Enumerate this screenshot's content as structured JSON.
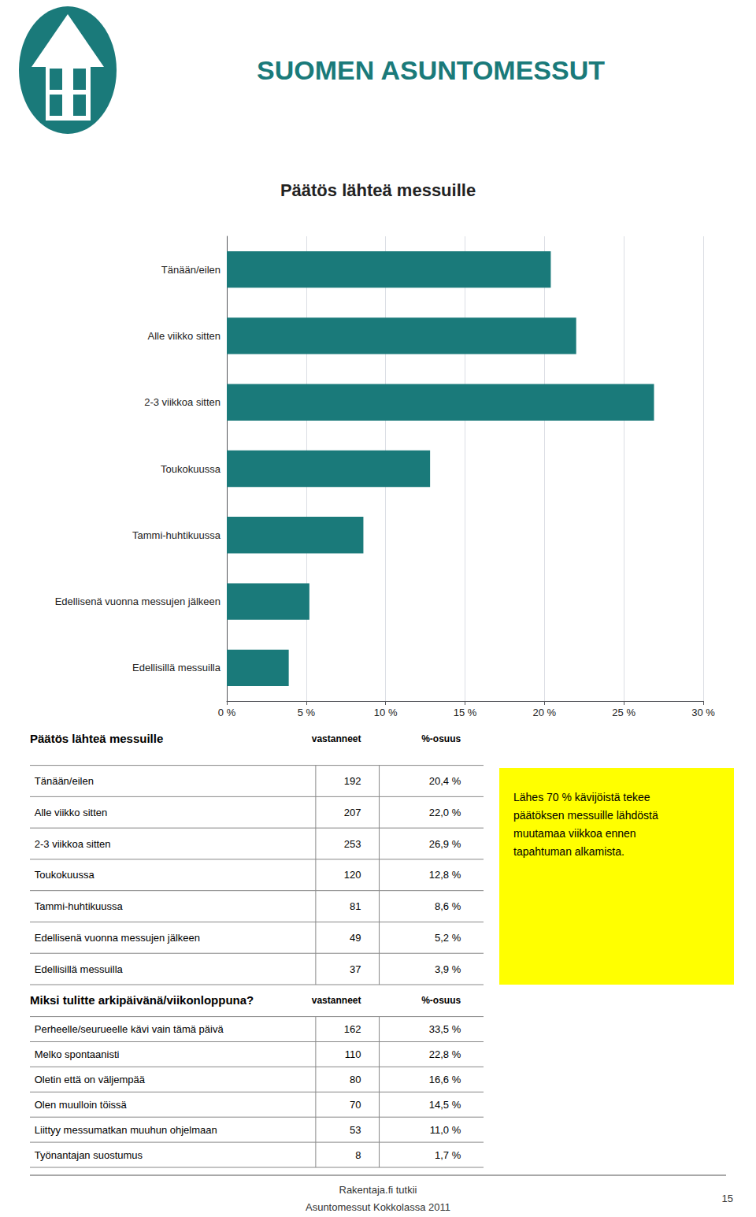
{
  "chart_data": {
    "type": "bar",
    "orientation": "horizontal",
    "title": "Päätös lähteä messuille",
    "categories": [
      "Tänään/eilen",
      "Alle viikko sitten",
      "2-3 viikkoa sitten",
      "Toukokuussa",
      "Tammi-huhtikuussa",
      "Edellisenä vuonna messujen jälkeen",
      "Edellisillä messuilla"
    ],
    "values": [
      20.4,
      22.0,
      26.9,
      12.8,
      8.6,
      5.2,
      3.9
    ],
    "color": "#1a7a7a",
    "xlim": [
      0,
      30
    ],
    "xticks": [
      {
        "value": 0,
        "label": "0 %"
      },
      {
        "value": 5,
        "label": "5 %"
      },
      {
        "value": 10,
        "label": "10 %"
      },
      {
        "value": 15,
        "label": "15 %"
      },
      {
        "value": 20,
        "label": "20 %"
      },
      {
        "value": 25,
        "label": "25 %"
      },
      {
        "value": 30,
        "label": "30 %"
      }
    ],
    "grid": true,
    "annotations": [
      {
        "text": "SUOMEN ASUNTOMESSUT",
        "color": "#1a7a7a"
      },
      {
        "text": "Lähes 70 % kävijöistä tekee\npäätöksen messuille lähdöstä\nmuutamaa viikkoa ennen\ntapahtuman alkamista.",
        "color": "#ffff00"
      },
      {
        "text": "Rakentaja.fi tutkii"
      },
      {
        "text": "Asuntomessut Kokkolassa 2011"
      },
      {
        "text": "15"
      }
    ],
    "tables": [
      {
        "title": "Päätös lähteä messuille",
        "headers": [
          "vastanneet",
          "%-osuus"
        ],
        "rows": [
          [
            "Tänään/eilen",
            "192",
            "20,4 %"
          ],
          [
            "Alle viikko sitten",
            "207",
            "22,0 %"
          ],
          [
            "2-3 viikkoa sitten",
            "253",
            "26,9 %"
          ],
          [
            "Toukokuussa",
            "120",
            "12,8 %"
          ],
          [
            "Tammi-huhtikuussa",
            "81",
            "8,6 %"
          ],
          [
            "Edellisenä vuonna messujen jälkeen",
            "49",
            "5,2 %"
          ],
          [
            "Edellisillä messuilla",
            "37",
            "3,9 %"
          ]
        ]
      },
      {
        "title": "Miksi tulitte arkipäivänä/viikonloppuna?",
        "headers": [
          "vastanneet",
          "%-osuus"
        ],
        "rows": [
          [
            "Perheelle/seurueelle kävi vain tämä päivä",
            "162",
            "33,5 %"
          ],
          [
            "Melko spontaanisti",
            "110",
            "22,8 %"
          ],
          [
            "Oletin että on väljempää",
            "80",
            "16,6 %"
          ],
          [
            "Olen muulloin töissä",
            "70",
            "14,5 %"
          ],
          [
            "Liittyy messumatkan muuhun ohjelmaan",
            "53",
            "11,0 %"
          ],
          [
            "Työnantajan suostumus",
            "8",
            "1,7 %"
          ]
        ]
      }
    ]
  }
}
